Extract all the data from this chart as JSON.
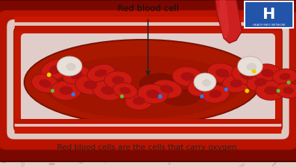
{
  "bg_color": "#e8cfc8",
  "figsize": [
    4.26,
    2.4
  ],
  "dpi": 100,
  "label_text": "Red blood cell",
  "caption_text": "Red blood cells are the cells that carry oxygen.",
  "logo_bg": "#2255aa",
  "logo_label": "H",
  "logo_sub": "HEALTH INFO NETWORK",
  "arrow_color": "#222222",
  "vessel_dark": "#7a0a00",
  "vessel_mid": "#b81500",
  "vessel_bright": "#cc2200",
  "vessel_highlight": "#e8d0cc",
  "lumen_bg": "#aa1800",
  "lumen_dark": "#881000",
  "rbc_outer": "#cc1a10",
  "rbc_dark": "#991010",
  "wbc_color": "#e8e0d8",
  "dot_blue": "#3377ee",
  "dot_green": "#66bb33",
  "dot_yellow": "#eecc00"
}
